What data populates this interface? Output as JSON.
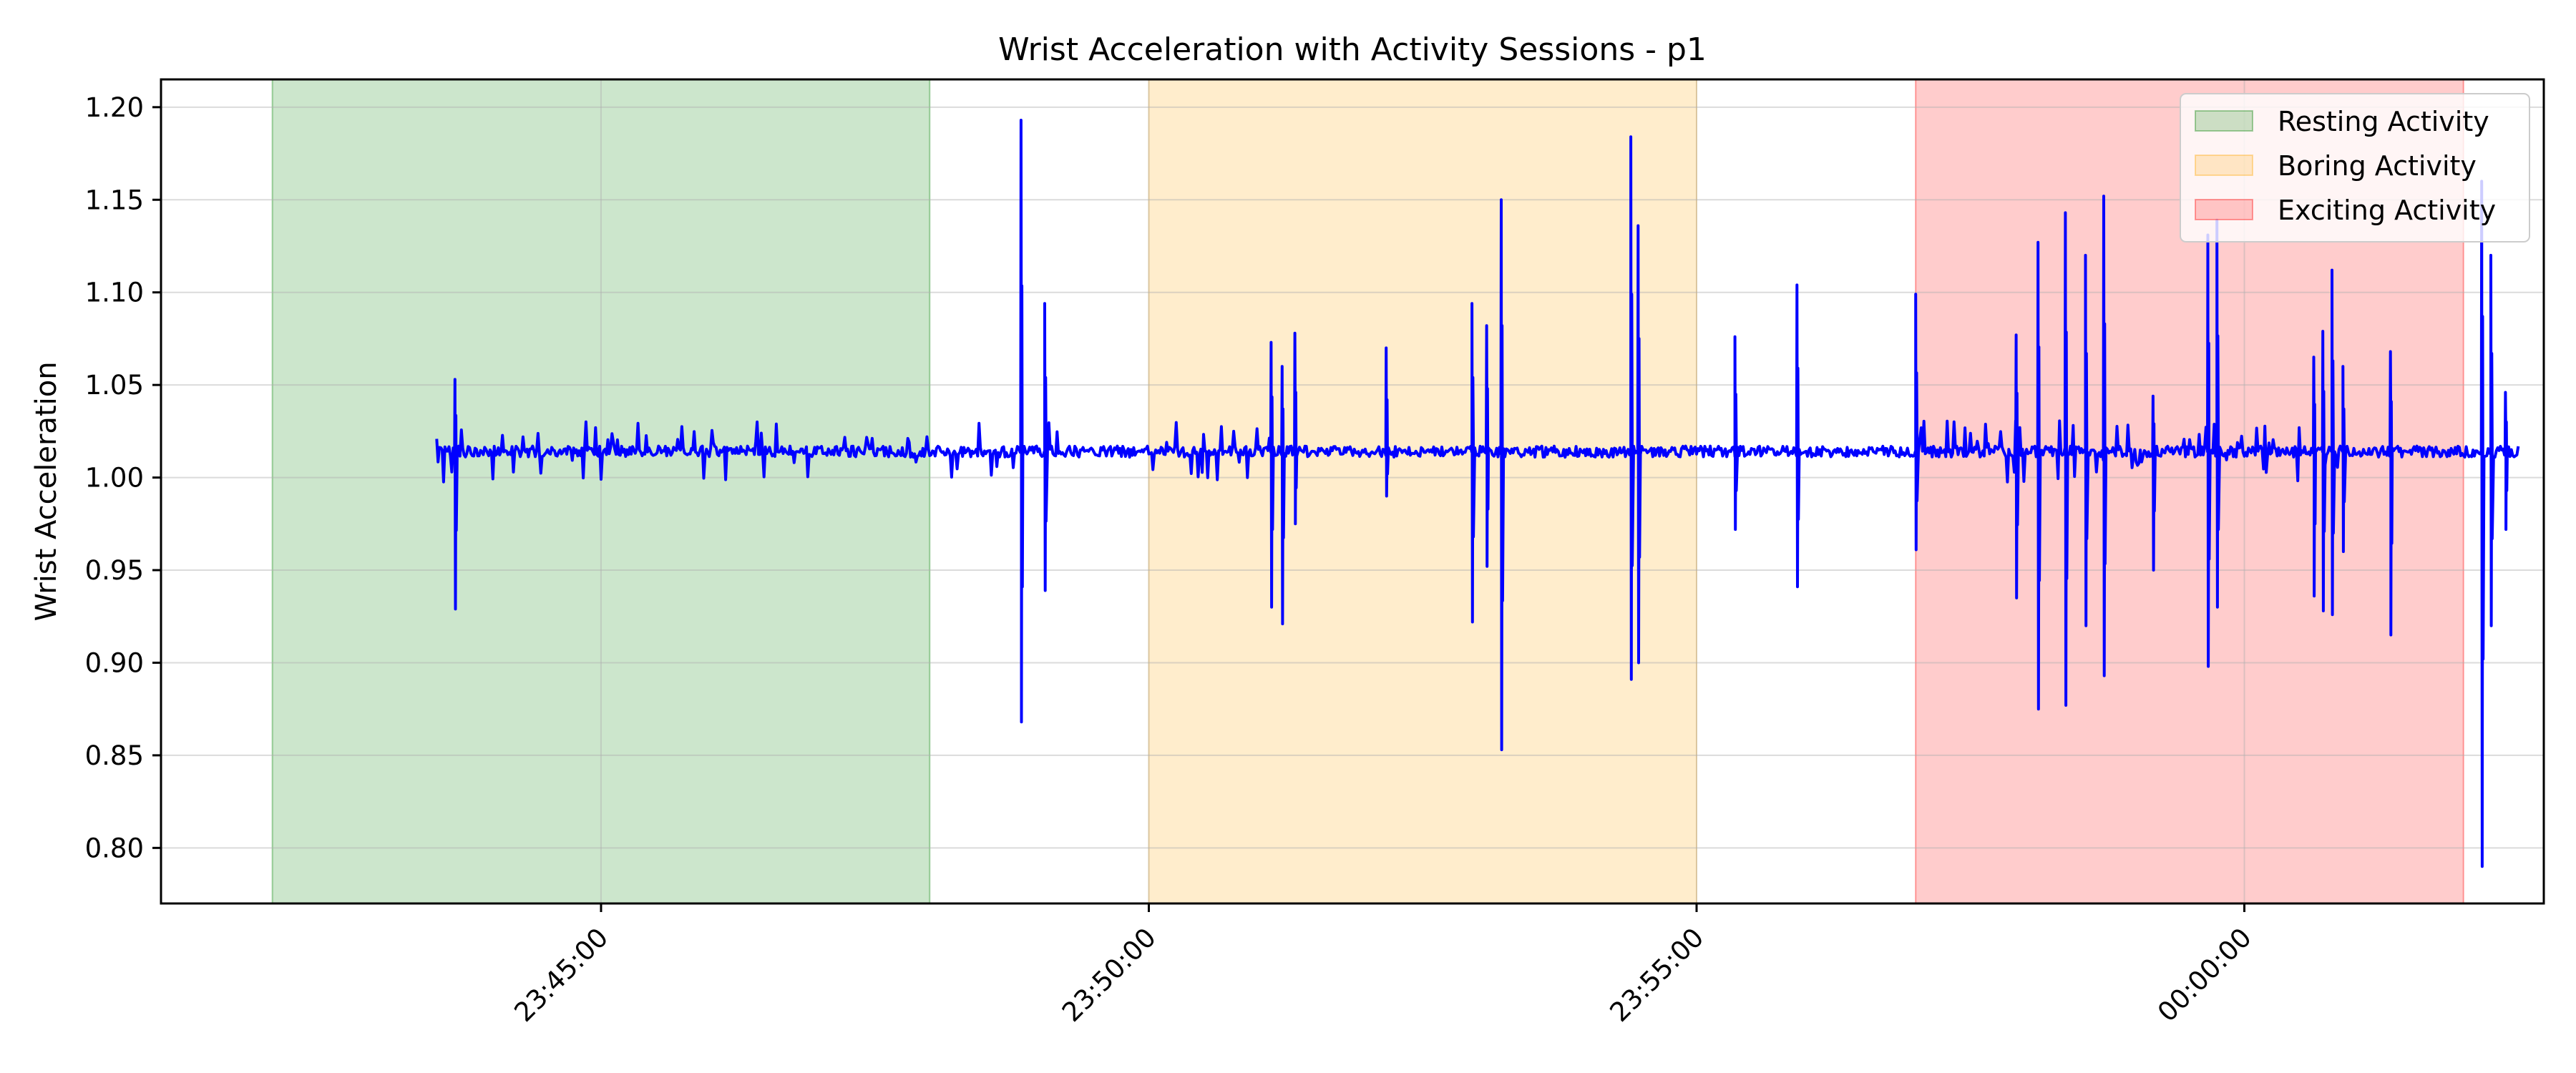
{
  "chart_data": {
    "type": "line",
    "title": "Wrist Acceleration with Activity Sessions - p1",
    "xlabel": "",
    "ylabel": "Wrist Acceleration",
    "xlim": [
      "23:40:59",
      "00:02:44"
    ],
    "ylim": [
      0.77,
      1.215
    ],
    "xticks": [
      "23:45:00",
      "23:50:00",
      "23:55:00",
      "00:00:00"
    ],
    "yticks": [
      "0.80",
      "0.85",
      "0.90",
      "0.95",
      "1.00",
      "1.05",
      "1.10",
      "1.15",
      "1.20"
    ],
    "grid": true,
    "legend_position": "top-right",
    "line_color": "#0000ff",
    "x_start": "23:43:30",
    "x_end": "00:02:30",
    "baseline": 1.014,
    "sessions": [
      {
        "name": "Resting Activity",
        "start": "23:42:00",
        "end": "23:48:00",
        "color": "#008000"
      },
      {
        "name": "Boring Activity",
        "start": "23:50:00",
        "end": "23:55:00",
        "color": "#ffa500"
      },
      {
        "name": "Exciting Activity",
        "start": "23:57:00",
        "end": "00:02:00",
        "color": "#ff0000"
      }
    ],
    "spikes": [
      {
        "t": "23:43:40",
        "high": 1.053,
        "low": 0.929
      },
      {
        "t": "23:48:50",
        "high": 1.193,
        "low": 0.868
      },
      {
        "t": "23:49:03",
        "high": 1.094,
        "low": 0.939
      },
      {
        "t": "23:51:07",
        "high": 1.073,
        "low": 0.93
      },
      {
        "t": "23:51:13",
        "high": 1.06,
        "low": 0.921
      },
      {
        "t": "23:51:20",
        "high": 1.078,
        "low": 0.975
      },
      {
        "t": "23:52:10",
        "high": 1.07,
        "low": 0.99
      },
      {
        "t": "23:52:57",
        "high": 1.094,
        "low": 0.922
      },
      {
        "t": "23:53:05",
        "high": 1.082,
        "low": 0.952
      },
      {
        "t": "23:53:13",
        "high": 1.15,
        "low": 0.853
      },
      {
        "t": "23:54:24",
        "high": 1.184,
        "low": 0.891
      },
      {
        "t": "23:54:28",
        "high": 1.136,
        "low": 0.9
      },
      {
        "t": "23:55:21",
        "high": 1.076,
        "low": 0.972
      },
      {
        "t": "23:55:55",
        "high": 1.104,
        "low": 0.941
      },
      {
        "t": "23:57:00",
        "high": 1.099,
        "low": 0.961
      },
      {
        "t": "23:57:55",
        "high": 1.077,
        "low": 0.935
      },
      {
        "t": "23:58:07",
        "high": 1.127,
        "low": 0.875
      },
      {
        "t": "23:58:22",
        "high": 1.143,
        "low": 0.877
      },
      {
        "t": "23:58:33",
        "high": 1.12,
        "low": 0.92
      },
      {
        "t": "23:58:43",
        "high": 1.152,
        "low": 0.893
      },
      {
        "t": "23:59:10",
        "high": 1.044,
        "low": 0.95
      },
      {
        "t": "23:59:40",
        "high": 1.131,
        "low": 0.898
      },
      {
        "t": "23:59:45",
        "high": 1.139,
        "low": 0.93
      },
      {
        "t": "00:00:38",
        "high": 1.065,
        "low": 0.936
      },
      {
        "t": "00:00:43",
        "high": 1.079,
        "low": 0.928
      },
      {
        "t": "00:00:48",
        "high": 1.112,
        "low": 0.926
      },
      {
        "t": "00:00:54",
        "high": 1.06,
        "low": 0.96
      },
      {
        "t": "00:01:20",
        "high": 1.068,
        "low": 0.915
      },
      {
        "t": "00:02:10",
        "high": 1.16,
        "low": 0.79
      },
      {
        "t": "00:02:15",
        "high": 1.12,
        "low": 0.92
      },
      {
        "t": "00:02:23",
        "high": 1.046,
        "low": 0.972
      }
    ]
  }
}
